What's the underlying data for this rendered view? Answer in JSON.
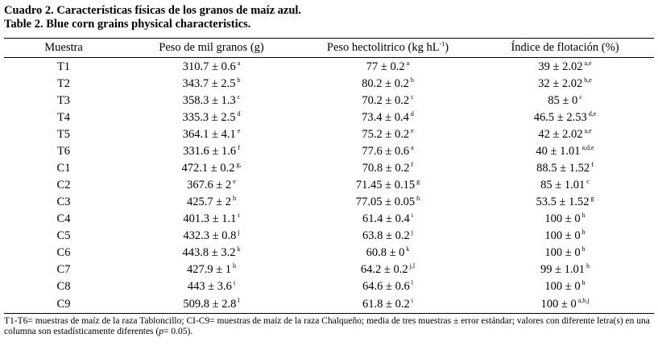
{
  "caption": {
    "spanish": "Cuadro 2. Características físicas de los granos de maíz azul.",
    "english": "Table 2. Blue corn grains physical characteristics."
  },
  "table": {
    "headers": {
      "sample": "Muestra",
      "weight": "Peso de mil granos (g)",
      "hectoliter_prefix": "Peso hectolitrico (kg hL",
      "hectoliter_sup": "-1",
      "hectoliter_suffix": ")",
      "flotation": "Índice de flotación (%)"
    },
    "rows": [
      {
        "sample": "T1",
        "weight": "310.7 ± 0.6",
        "weight_sup": "a",
        "hectoliter": "77 ± 0.2",
        "hectoliter_sup": "a",
        "flotation": "39 ± 2.02",
        "flotation_sup": "a,e"
      },
      {
        "sample": "T2",
        "weight": "343.7 ± 2.5",
        "weight_sup": "b",
        "hectoliter": "80.2 ± 0.2",
        "hectoliter_sup": "b",
        "flotation": "32 ± 2.02",
        "flotation_sup": "b,e"
      },
      {
        "sample": "T3",
        "weight": "358.3 ± 1.3",
        "weight_sup": "c",
        "hectoliter": "70.2 ± 0.2",
        "hectoliter_sup": "c",
        "flotation": "85 ± 0",
        "flotation_sup": "c"
      },
      {
        "sample": "T4",
        "weight": "335.3 ± 2.5",
        "weight_sup": "d",
        "hectoliter": "73.4 ± 0.4",
        "hectoliter_sup": "d",
        "flotation": "46.5 ± 2.53",
        "flotation_sup": "d,e"
      },
      {
        "sample": "T5",
        "weight": "364.1 ± 4.1",
        "weight_sup": "e",
        "hectoliter": "75.2 ± 0.2",
        "hectoliter_sup": "e",
        "flotation": "42 ± 2.02",
        "flotation_sup": "a,e"
      },
      {
        "sample": "T6",
        "weight": "331.6 ± 1.6",
        "weight_sup": "f",
        "hectoliter": "77.6 ± 0.6",
        "hectoliter_sup": "a",
        "flotation": "40 ± 1.01",
        "flotation_sup": "a,d,e"
      },
      {
        "sample": "C1",
        "weight": "472.1 ± 0.2",
        "weight_sup": "g,",
        "hectoliter": "70.8 ± 0.2",
        "hectoliter_sup": "f",
        "flotation": "88.5 ± 1.52",
        "flotation_sup": "f"
      },
      {
        "sample": "C2",
        "weight": "367.6 ± 2",
        "weight_sup": "e",
        "hectoliter": "71.45 ± 0.15",
        "hectoliter_sup": "g",
        "flotation": "85 ± 1.01",
        "flotation_sup": "c"
      },
      {
        "sample": "C3",
        "weight": "425.7 ± 2",
        "weight_sup": "h",
        "hectoliter": "77.05 ± 0.05",
        "hectoliter_sup": "h",
        "flotation": "53.5 ± 1.52",
        "flotation_sup": "g"
      },
      {
        "sample": "C4",
        "weight": "401.3 ± 1.1",
        "weight_sup": "i",
        "hectoliter": "61.4 ± 0.4",
        "hectoliter_sup": "i",
        "flotation": "100 ± 0",
        "flotation_sup": "h"
      },
      {
        "sample": "C5",
        "weight": "432.3 ± 0.8",
        "weight_sup": "j",
        "hectoliter": "63.8 ± 0.2",
        "hectoliter_sup": "j",
        "flotation": "100 ± 0",
        "flotation_sup": "h"
      },
      {
        "sample": "C6",
        "weight": "443.8 ± 3.2",
        "weight_sup": "k",
        "hectoliter": "60.8 ± 0",
        "hectoliter_sup": "k",
        "flotation": "100 ± 0",
        "flotation_sup": "h"
      },
      {
        "sample": "C7",
        "weight": "427.9 ± 1",
        "weight_sup": "h",
        "hectoliter": "64.2 ± 0.2",
        "hectoliter_sup": "j,l",
        "flotation": "99 ± 1.01",
        "flotation_sup": "h"
      },
      {
        "sample": "C8",
        "weight": "443 ± 3.6",
        "weight_sup": "i",
        "hectoliter": "64.6 ± 0.6",
        "hectoliter_sup": "l",
        "flotation": "100 ± 0",
        "flotation_sup": "h"
      },
      {
        "sample": "C9",
        "weight": "509.8 ± 2.8",
        "weight_sup": "l",
        "hectoliter": "61.8 ± 0.2",
        "hectoliter_sup": "i",
        "flotation": "100 ± 0",
        "flotation_sup": "a,b,j"
      }
    ]
  },
  "footnote": {
    "text_before": "T1-T6= muestras de maíz de la raza Tabloncillo; CI-C9= muestras de maíz de la raza Chalqueño; media de tres muestras ± error estándar; valores con diferente letra(s) en una columna son estadísticamente diferentes (",
    "p_label": "p",
    "text_after": "= 0.05)."
  }
}
